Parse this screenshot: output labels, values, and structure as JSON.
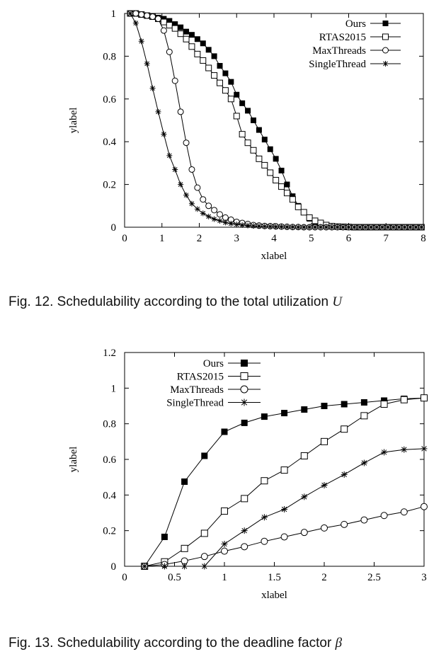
{
  "figures": [
    {
      "caption": "Fig. 12. Schedulability according to the total utilization",
      "caption_symbol": "U"
    },
    {
      "caption": "Fig. 13. Schedulability according to the deadline factor",
      "caption_symbol": "β"
    }
  ],
  "chart_data": [
    {
      "type": "line",
      "title": "",
      "xlabel": "xlabel",
      "ylabel": "ylabel",
      "xlim": [
        0,
        8
      ],
      "ylim": [
        0,
        1
      ],
      "xticks": [
        "0",
        "1",
        "2",
        "3",
        "4",
        "5",
        "6",
        "7",
        "8"
      ],
      "yticks": [
        "0",
        "0.2",
        "0.4",
        "0.6",
        "0.8",
        "1"
      ],
      "grid": false,
      "legend_position": "top-right",
      "series": [
        {
          "name": "Ours",
          "marker": "filled-square",
          "x": [
            0.15,
            0.3,
            0.45,
            0.6,
            0.75,
            0.9,
            1.05,
            1.2,
            1.35,
            1.5,
            1.65,
            1.8,
            1.95,
            2.1,
            2.25,
            2.4,
            2.55,
            2.7,
            2.85,
            3.0,
            3.15,
            3.3,
            3.45,
            3.6,
            3.75,
            3.9,
            4.05,
            4.2,
            4.35,
            4.5,
            4.65,
            4.8,
            4.95,
            5.1,
            5.25,
            5.4,
            5.55,
            5.7,
            5.85,
            6.0,
            6.15,
            6.3,
            6.45,
            6.6,
            6.75,
            6.9,
            7.05,
            7.2,
            7.35,
            7.5,
            7.65,
            7.8,
            7.95
          ],
          "y": [
            1,
            1,
            0.995,
            0.99,
            0.985,
            0.98,
            0.975,
            0.965,
            0.95,
            0.935,
            0.915,
            0.9,
            0.88,
            0.86,
            0.83,
            0.8,
            0.755,
            0.72,
            0.68,
            0.62,
            0.58,
            0.545,
            0.5,
            0.455,
            0.41,
            0.365,
            0.32,
            0.265,
            0.2,
            0.145,
            0.1,
            0.07,
            0.04,
            0.02,
            0.01,
            0.005,
            0.003,
            0.002,
            0.001,
            0.001,
            0,
            0,
            0,
            0,
            0,
            0,
            0,
            0,
            0,
            0,
            0,
            0,
            0
          ]
        },
        {
          "name": "RTAS2015",
          "marker": "open-square",
          "x": [
            0.15,
            0.3,
            0.45,
            0.6,
            0.75,
            0.9,
            1.05,
            1.2,
            1.35,
            1.5,
            1.65,
            1.8,
            1.95,
            2.1,
            2.25,
            2.4,
            2.55,
            2.7,
            2.85,
            3.0,
            3.15,
            3.3,
            3.45,
            3.6,
            3.75,
            3.9,
            4.05,
            4.2,
            4.35,
            4.5,
            4.65,
            4.8,
            4.95,
            5.1,
            5.25,
            5.4,
            5.55,
            5.7,
            5.85,
            6.0,
            6.15,
            6.3,
            6.45,
            6.6,
            6.75,
            6.9,
            7.05,
            7.2,
            7.35,
            7.5,
            7.65,
            7.8,
            7.95
          ],
          "y": [
            1,
            1,
            0.995,
            0.99,
            0.985,
            0.975,
            0.96,
            0.945,
            0.93,
            0.905,
            0.88,
            0.845,
            0.81,
            0.78,
            0.745,
            0.71,
            0.675,
            0.64,
            0.6,
            0.52,
            0.435,
            0.395,
            0.36,
            0.32,
            0.29,
            0.255,
            0.22,
            0.19,
            0.16,
            0.13,
            0.095,
            0.07,
            0.045,
            0.03,
            0.02,
            0.01,
            0.005,
            0.003,
            0.002,
            0.001,
            0,
            0,
            0,
            0,
            0,
            0,
            0,
            0,
            0,
            0,
            0,
            0,
            0
          ]
        },
        {
          "name": "MaxThreads",
          "marker": "open-circle",
          "x": [
            0.15,
            0.3,
            0.45,
            0.6,
            0.75,
            0.9,
            1.05,
            1.2,
            1.35,
            1.5,
            1.65,
            1.8,
            1.95,
            2.1,
            2.25,
            2.4,
            2.55,
            2.7,
            2.85,
            3.0,
            3.15,
            3.3,
            3.45,
            3.6,
            3.75,
            3.9,
            4.05,
            4.2,
            4.35,
            4.5,
            4.65,
            4.8,
            4.95,
            5.1,
            5.25,
            5.4,
            5.55,
            5.7,
            5.85,
            6.0,
            6.15,
            6.3,
            6.45,
            6.6,
            6.75,
            6.9,
            7.05,
            7.2,
            7.35,
            7.5,
            7.65,
            7.8,
            7.95
          ],
          "y": [
            1,
            1,
            0.995,
            0.99,
            0.985,
            0.975,
            0.92,
            0.82,
            0.685,
            0.54,
            0.395,
            0.27,
            0.185,
            0.13,
            0.1,
            0.08,
            0.06,
            0.045,
            0.035,
            0.025,
            0.02,
            0.015,
            0.01,
            0.008,
            0.006,
            0.005,
            0.004,
            0.003,
            0.002,
            0.001,
            0.001,
            0,
            0,
            0,
            0,
            0,
            0,
            0,
            0,
            0,
            0,
            0,
            0,
            0,
            0,
            0,
            0,
            0,
            0,
            0,
            0,
            0,
            0
          ]
        },
        {
          "name": "SingleThread",
          "marker": "asterisk",
          "x": [
            0.15,
            0.3,
            0.45,
            0.6,
            0.75,
            0.9,
            1.05,
            1.2,
            1.35,
            1.5,
            1.65,
            1.8,
            1.95,
            2.1,
            2.25,
            2.4,
            2.55,
            2.7,
            2.85,
            3.0,
            3.15,
            3.3,
            3.45,
            3.6,
            3.75,
            3.9,
            4.05,
            4.2,
            4.35,
            4.5,
            4.65,
            4.8,
            4.95,
            5.1,
            5.25,
            5.4,
            5.55,
            5.7,
            5.85,
            6.0,
            6.15,
            6.3,
            6.45,
            6.6,
            6.75,
            6.9,
            7.05,
            7.2,
            7.35,
            7.5,
            7.65,
            7.8,
            7.95
          ],
          "y": [
            1,
            0.955,
            0.87,
            0.765,
            0.65,
            0.54,
            0.435,
            0.335,
            0.27,
            0.2,
            0.15,
            0.11,
            0.085,
            0.065,
            0.05,
            0.038,
            0.03,
            0.022,
            0.017,
            0.013,
            0.01,
            0.008,
            0.006,
            0.005,
            0.004,
            0.003,
            0.002,
            0.002,
            0.001,
            0.001,
            0,
            0,
            0,
            0,
            0,
            0,
            0,
            0,
            0,
            0,
            0,
            0,
            0,
            0,
            0,
            0,
            0,
            0,
            0,
            0,
            0,
            0,
            0
          ]
        }
      ]
    },
    {
      "type": "line",
      "title": "",
      "xlabel": "xlabel",
      "ylabel": "ylabel",
      "xlim": [
        0,
        3
      ],
      "ylim": [
        0,
        1.2
      ],
      "xticks": [
        "0",
        "0.5",
        "1",
        "1.5",
        "2",
        "2.5",
        "3"
      ],
      "yticks": [
        "0",
        "0.2",
        "0.4",
        "0.6",
        "0.8",
        "1",
        "1.2"
      ],
      "grid": false,
      "legend_position": "top-left",
      "series": [
        {
          "name": "Ours",
          "marker": "filled-square",
          "x": [
            0.2,
            0.4,
            0.6,
            0.8,
            1.0,
            1.2,
            1.4,
            1.6,
            1.8,
            2.0,
            2.2,
            2.4,
            2.6,
            2.8,
            3.0
          ],
          "y": [
            0,
            0.165,
            0.475,
            0.62,
            0.755,
            0.805,
            0.84,
            0.86,
            0.88,
            0.9,
            0.91,
            0.92,
            0.93,
            0.94,
            0.945
          ]
        },
        {
          "name": "RTAS2015",
          "marker": "open-square",
          "x": [
            0.2,
            0.4,
            0.6,
            0.8,
            1.0,
            1.2,
            1.4,
            1.6,
            1.8,
            2.0,
            2.2,
            2.4,
            2.6,
            2.8,
            3.0
          ],
          "y": [
            0,
            0.025,
            0.1,
            0.185,
            0.31,
            0.38,
            0.48,
            0.54,
            0.62,
            0.7,
            0.77,
            0.845,
            0.91,
            0.935,
            0.945
          ]
        },
        {
          "name": "MaxThreads",
          "marker": "open-circle",
          "x": [
            0.2,
            0.4,
            0.6,
            0.8,
            1.0,
            1.2,
            1.4,
            1.6,
            1.8,
            2.0,
            2.2,
            2.4,
            2.6,
            2.8,
            3.0
          ],
          "y": [
            0,
            0.01,
            0.03,
            0.055,
            0.085,
            0.11,
            0.14,
            0.165,
            0.19,
            0.215,
            0.235,
            0.26,
            0.285,
            0.305,
            0.335
          ]
        },
        {
          "name": "SingleThread",
          "marker": "asterisk",
          "x": [
            0.2,
            0.4,
            0.6,
            0.8,
            1.0,
            1.2,
            1.4,
            1.6,
            1.8,
            2.0,
            2.2,
            2.4,
            2.6,
            2.8,
            3.0
          ],
          "y": [
            0,
            0,
            0,
            0,
            0.125,
            0.2,
            0.275,
            0.32,
            0.39,
            0.455,
            0.515,
            0.58,
            0.64,
            0.655,
            0.66
          ]
        }
      ]
    }
  ]
}
